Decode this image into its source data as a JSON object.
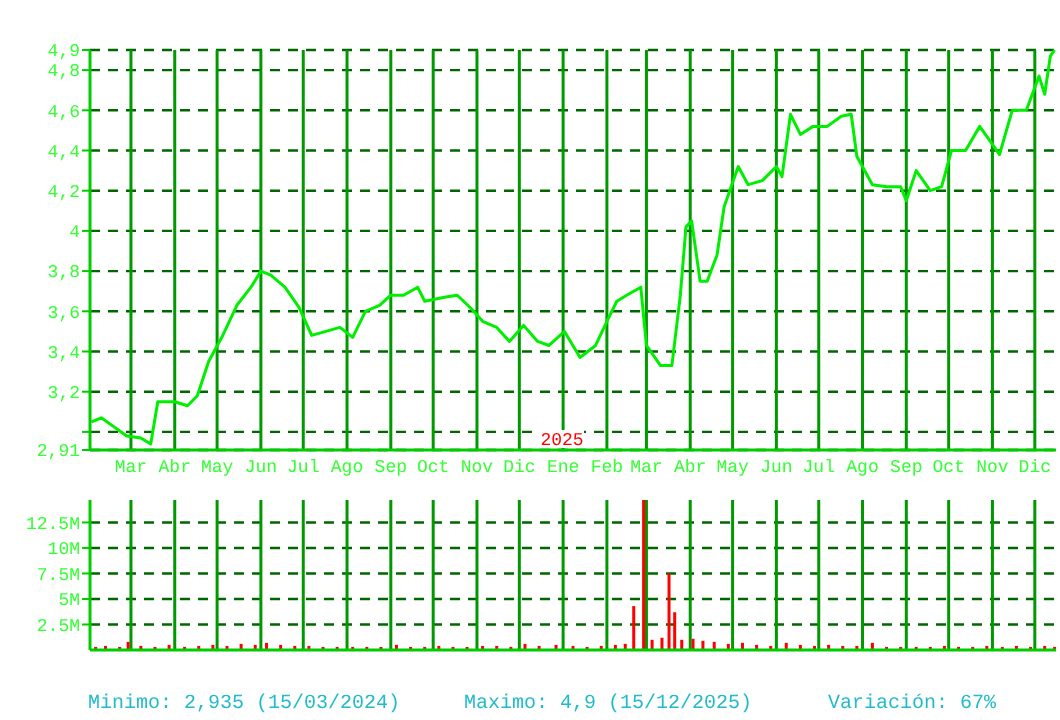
{
  "chart_data": [
    {
      "type": "line",
      "grid": true,
      "marker": "none",
      "line_style": "solid",
      "xlim": [
        "2024-02-01",
        "2025-12-16"
      ],
      "xticks": [
        {
          "value": "2024-03-01",
          "label": "Mar"
        },
        {
          "value": "2024-04-01",
          "label": "Abr"
        },
        {
          "value": "2024-05-01",
          "label": "May"
        },
        {
          "value": "2024-06-01",
          "label": "Jun"
        },
        {
          "value": "2024-07-01",
          "label": "Jul"
        },
        {
          "value": "2024-08-01",
          "label": "Ago"
        },
        {
          "value": "2024-09-01",
          "label": "Sep"
        },
        {
          "value": "2024-10-01",
          "label": "Oct"
        },
        {
          "value": "2024-11-01",
          "label": "Nov"
        },
        {
          "value": "2024-12-01",
          "label": "Dic"
        },
        {
          "value": "2025-01-01",
          "label": "Ene"
        },
        {
          "value": "2025-02-01",
          "label": "Feb"
        },
        {
          "value": "2025-03-01",
          "label": "Mar"
        },
        {
          "value": "2025-04-01",
          "label": "Abr"
        },
        {
          "value": "2025-05-01",
          "label": "May"
        },
        {
          "value": "2025-06-01",
          "label": "Jun"
        },
        {
          "value": "2025-07-01",
          "label": "Jul"
        },
        {
          "value": "2025-08-01",
          "label": "Ago"
        },
        {
          "value": "2025-09-01",
          "label": "Sep"
        },
        {
          "value": "2025-10-01",
          "label": "Oct"
        },
        {
          "value": "2025-11-01",
          "label": "Nov"
        },
        {
          "value": "2025-12-01",
          "label": "Dic"
        }
      ],
      "ylim": [
        2.91,
        4.9
      ],
      "yticks": [
        {
          "value": 2.91,
          "label": "2,91"
        },
        {
          "value": 3.0,
          "label": null
        },
        {
          "value": 3.2,
          "label": "3,2"
        },
        {
          "value": 3.4,
          "label": "3,4"
        },
        {
          "value": 3.6,
          "label": "3,6"
        },
        {
          "value": 3.8,
          "label": "3,8"
        },
        {
          "value": 4.0,
          "label": "4"
        },
        {
          "value": 4.2,
          "label": "4,2"
        },
        {
          "value": 4.4,
          "label": "4,4"
        },
        {
          "value": 4.6,
          "label": "4,6"
        },
        {
          "value": 4.8,
          "label": "4,8"
        },
        {
          "value": 4.9,
          "label": "4,9"
        }
      ],
      "annotations": [
        "2025"
      ],
      "series": [
        {
          "color": "#00ee00",
          "x": [
            "2024-02-02",
            "2024-02-09",
            "2024-02-19",
            "2024-02-27",
            "2024-03-08",
            "2024-03-15",
            "2024-03-20",
            "2024-04-01",
            "2024-04-10",
            "2024-04-17",
            "2024-04-25",
            "2024-05-05",
            "2024-05-15",
            "2024-05-25",
            "2024-06-01",
            "2024-06-08",
            "2024-06-18",
            "2024-06-28",
            "2024-07-07",
            "2024-07-17",
            "2024-07-27",
            "2024-08-05",
            "2024-08-14",
            "2024-08-24",
            "2024-09-01",
            "2024-09-10",
            "2024-09-20",
            "2024-09-25",
            "2024-10-09",
            "2024-10-18",
            "2024-10-27",
            "2024-11-05",
            "2024-11-15",
            "2024-11-24",
            "2024-12-04",
            "2024-12-14",
            "2024-12-22",
            "2025-01-02",
            "2025-01-13",
            "2025-01-24",
            "2025-02-01",
            "2025-02-08",
            "2025-02-15",
            "2025-02-25",
            "2025-03-01",
            "2025-03-11",
            "2025-03-19",
            "2025-03-25",
            "2025-03-29",
            "2025-04-02",
            "2025-04-08",
            "2025-04-13",
            "2025-04-20",
            "2025-04-25",
            "2025-05-05",
            "2025-05-12",
            "2025-05-22",
            "2025-06-01",
            "2025-06-05",
            "2025-06-11",
            "2025-06-18",
            "2025-06-27",
            "2025-07-07",
            "2025-07-17",
            "2025-07-24",
            "2025-07-28",
            "2025-08-08",
            "2025-08-18",
            "2025-08-28",
            "2025-09-01",
            "2025-09-08",
            "2025-09-18",
            "2025-09-26",
            "2025-10-03",
            "2025-10-13",
            "2025-10-23",
            "2025-10-30",
            "2025-11-06",
            "2025-11-15",
            "2025-11-25",
            "2025-12-04",
            "2025-12-08",
            "2025-12-12",
            "2025-12-15"
          ],
          "values": [
            3.05,
            3.07,
            3.02,
            2.98,
            2.97,
            2.94,
            3.15,
            3.15,
            3.13,
            3.18,
            3.35,
            3.48,
            3.63,
            3.72,
            3.8,
            3.78,
            3.72,
            3.62,
            3.48,
            3.5,
            3.52,
            3.47,
            3.6,
            3.63,
            3.68,
            3.68,
            3.72,
            3.65,
            3.67,
            3.68,
            3.62,
            3.55,
            3.52,
            3.45,
            3.53,
            3.45,
            3.43,
            3.5,
            3.37,
            3.43,
            3.55,
            3.65,
            3.68,
            3.72,
            3.43,
            3.33,
            3.33,
            3.68,
            4.02,
            4.05,
            3.75,
            3.75,
            3.88,
            4.12,
            4.32,
            4.23,
            4.25,
            4.32,
            4.27,
            4.58,
            4.48,
            4.52,
            4.52,
            4.57,
            4.58,
            4.37,
            4.23,
            4.22,
            4.22,
            4.15,
            4.3,
            4.2,
            4.22,
            4.4,
            4.4,
            4.52,
            4.45,
            4.38,
            4.6,
            4.6,
            4.77,
            4.68,
            4.87,
            4.9
          ]
        }
      ]
    },
    {
      "type": "bar",
      "grid": true,
      "tick_labels": "y",
      "xlim": [
        "2024-02-01",
        "2025-12-16"
      ],
      "xticks": [
        {
          "value": "2024-03-01",
          "label": null
        },
        {
          "value": "2024-04-01",
          "label": null
        },
        {
          "value": "2024-05-01",
          "label": null
        },
        {
          "value": "2024-06-01",
          "label": null
        },
        {
          "value": "2024-07-01",
          "label": null
        },
        {
          "value": "2024-08-01",
          "label": null
        },
        {
          "value": "2024-09-01",
          "label": null
        },
        {
          "value": "2024-10-01",
          "label": null
        },
        {
          "value": "2024-11-01",
          "label": null
        },
        {
          "value": "2024-12-01",
          "label": null
        },
        {
          "value": "2025-01-01",
          "label": null
        },
        {
          "value": "2025-02-01",
          "label": null
        },
        {
          "value": "2025-03-01",
          "label": null
        },
        {
          "value": "2025-04-01",
          "label": null
        },
        {
          "value": "2025-05-01",
          "label": null
        },
        {
          "value": "2025-06-01",
          "label": null
        },
        {
          "value": "2025-07-01",
          "label": null
        },
        {
          "value": "2025-08-01",
          "label": null
        },
        {
          "value": "2025-09-01",
          "label": null
        },
        {
          "value": "2025-10-01",
          "label": null
        },
        {
          "value": "2025-11-01",
          "label": null
        },
        {
          "value": "2025-12-01",
          "label": null
        }
      ],
      "ylim": [
        0,
        14.7
      ],
      "yticks": [
        {
          "value": 2.5,
          "label": "2.5M"
        },
        {
          "value": 5,
          "label": "5M"
        },
        {
          "value": 7.5,
          "label": "7.5M"
        },
        {
          "value": 10,
          "label": "10M"
        },
        {
          "value": 12.5,
          "label": "12.5M"
        }
      ],
      "annotations": [
        "Minimo: 2,935 (15/03/2024)",
        "Maximo: 4,9 (15/12/2025)",
        "Variación: 67%"
      ],
      "series": [
        {
          "color": "#ff0000",
          "x": [
            "2024-02-05",
            "2024-02-12",
            "2024-02-22",
            "2024-02-28",
            "2024-03-08",
            "2024-03-18",
            "2024-03-28",
            "2024-04-08",
            "2024-04-18",
            "2024-04-28",
            "2024-05-08",
            "2024-05-18",
            "2024-05-28",
            "2024-06-05",
            "2024-06-15",
            "2024-06-25",
            "2024-07-05",
            "2024-07-15",
            "2024-07-25",
            "2024-08-05",
            "2024-08-15",
            "2024-08-25",
            "2024-09-05",
            "2024-09-15",
            "2024-09-25",
            "2024-10-05",
            "2024-10-15",
            "2024-10-25",
            "2024-11-05",
            "2024-11-15",
            "2024-11-25",
            "2024-12-05",
            "2024-12-15",
            "2024-12-27",
            "2025-01-08",
            "2025-01-18",
            "2025-01-28",
            "2025-02-07",
            "2025-02-14",
            "2025-02-20",
            "2025-02-27",
            "2025-03-05",
            "2025-03-12",
            "2025-03-17",
            "2025-03-21",
            "2025-03-26",
            "2025-04-03",
            "2025-04-10",
            "2025-04-18",
            "2025-04-28",
            "2025-05-08",
            "2025-05-18",
            "2025-05-28",
            "2025-06-08",
            "2025-06-18",
            "2025-06-28",
            "2025-07-08",
            "2025-07-18",
            "2025-07-28",
            "2025-08-08",
            "2025-08-18",
            "2025-08-28",
            "2025-09-08",
            "2025-09-18",
            "2025-09-28",
            "2025-10-08",
            "2025-10-18",
            "2025-10-28",
            "2025-11-08",
            "2025-11-18",
            "2025-11-28",
            "2025-12-08",
            "2025-12-15"
          ],
          "values": [
            0.3,
            0.4,
            0.3,
            0.8,
            0.4,
            0.3,
            0.5,
            0.3,
            0.4,
            0.5,
            0.4,
            0.6,
            0.5,
            0.7,
            0.5,
            0.4,
            0.4,
            0.3,
            0.3,
            0.3,
            0.3,
            0.3,
            0.5,
            0.3,
            0.3,
            0.4,
            0.3,
            0.3,
            0.4,
            0.4,
            0.3,
            0.6,
            0.4,
            0.5,
            0.4,
            0.3,
            0.4,
            0.5,
            0.6,
            4.3,
            14.7,
            1.0,
            1.2,
            7.5,
            3.7,
            1.0,
            1.1,
            0.9,
            0.8,
            0.6,
            0.7,
            0.5,
            0.4,
            0.7,
            0.5,
            0.4,
            0.5,
            0.4,
            0.4,
            0.7,
            0.3,
            0.3,
            0.3,
            0.3,
            0.4,
            0.3,
            0.3,
            0.4,
            0.3,
            0.4,
            0.3,
            0.4,
            0.3
          ]
        }
      ]
    }
  ]
}
